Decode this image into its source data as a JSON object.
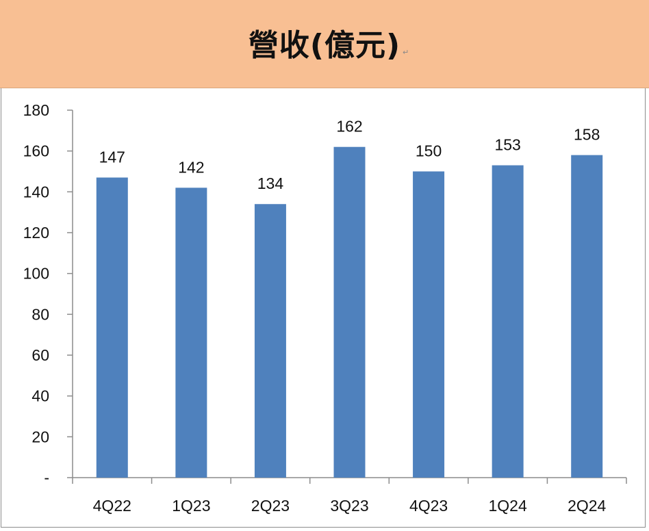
{
  "header": {
    "title": "營收(億元)"
  },
  "chart_data": {
    "type": "bar",
    "title": "營收(億元)",
    "categories": [
      "4Q22",
      "1Q23",
      "2Q23",
      "3Q23",
      "4Q23",
      "1Q24",
      "2Q24"
    ],
    "values": [
      147,
      142,
      134,
      162,
      150,
      153,
      158
    ],
    "ylim": [
      0,
      180
    ],
    "yticks": [
      0,
      20,
      40,
      60,
      80,
      100,
      120,
      140,
      160,
      180
    ],
    "ytick_labels": [
      "-",
      "20",
      "40",
      "60",
      "80",
      "100",
      "120",
      "140",
      "160",
      "180"
    ],
    "xlabel": "",
    "ylabel": "",
    "grid": false,
    "bar_color": "#4f81bd",
    "data_labels": true
  }
}
